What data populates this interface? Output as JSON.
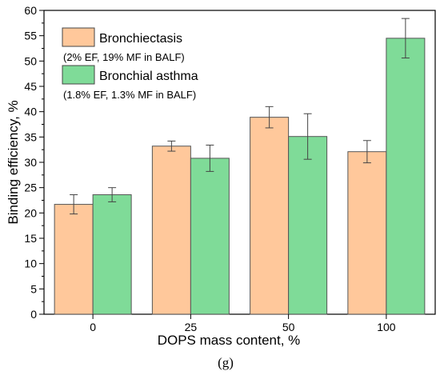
{
  "chart_data": {
    "type": "bar",
    "categories": [
      "0",
      "25",
      "50",
      "100"
    ],
    "series": [
      {
        "name": "Bronchiectasis",
        "note": "(2% EF, 19% MF in BALF)",
        "color": "#ffc89b",
        "values": [
          21.7,
          33.2,
          38.9,
          32.1
        ],
        "errors": [
          1.9,
          1.0,
          2.1,
          2.2
        ]
      },
      {
        "name": "Bronchial asthma",
        "note": "(1.8% EF, 1.3% MF in BALF)",
        "color": "#7fdb98",
        "values": [
          23.6,
          30.8,
          35.1,
          54.5
        ],
        "errors": [
          1.4,
          2.6,
          4.5,
          3.9
        ]
      }
    ],
    "xlabel": "DOPS mass content, %",
    "ylabel": "Binding efficiency, %",
    "ylim": [
      0,
      60
    ],
    "yticks": [
      0,
      5,
      10,
      15,
      20,
      25,
      30,
      35,
      40,
      45,
      50,
      55,
      60
    ],
    "legend_position": "top-left",
    "grid": false
  },
  "caption": "(g)"
}
